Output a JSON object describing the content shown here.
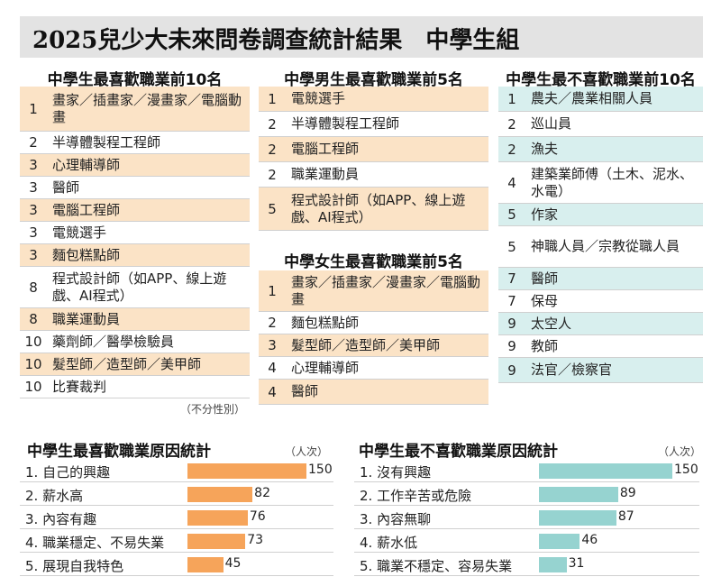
{
  "title": "2025兒少大未來問卷調查統計結果　中學生組",
  "colors": {
    "orange": "#f6a45a",
    "teal": "#96d3d0",
    "orange_light": "#fbe3c6",
    "teal_light": "#d8efee"
  },
  "like_top10": {
    "heading": "中學生最喜歡職業前10名",
    "note": "（不分性別）",
    "rows": [
      {
        "rank": "1",
        "label": "畫家／插畫家／漫畫家／電腦動畫",
        "hl": true
      },
      {
        "rank": "2",
        "label": "半導體製程工程師",
        "hl": false
      },
      {
        "rank": "3",
        "label": "心理輔導師",
        "hl": true
      },
      {
        "rank": "3",
        "label": "醫師",
        "hl": false
      },
      {
        "rank": "3",
        "label": "電腦工程師",
        "hl": true
      },
      {
        "rank": "3",
        "label": "電競選手",
        "hl": false
      },
      {
        "rank": "3",
        "label": "麵包糕點師",
        "hl": true
      },
      {
        "rank": "8",
        "label": "程式設計師（如APP、線上遊戲、AI程式）",
        "hl": false
      },
      {
        "rank": "8",
        "label": "職業運動員",
        "hl": true
      },
      {
        "rank": "10",
        "label": "藥劑師／醫學檢驗員",
        "hl": false
      },
      {
        "rank": "10",
        "label": "髮型師／造型師／美甲師",
        "hl": true
      },
      {
        "rank": "10",
        "label": "比賽裁判",
        "hl": false
      }
    ]
  },
  "boys_top5": {
    "heading": "中學男生最喜歡職業前5名",
    "rows": [
      {
        "rank": "1",
        "label": "電競選手",
        "hl": true
      },
      {
        "rank": "2",
        "label": "半導體製程工程師",
        "hl": false
      },
      {
        "rank": "2",
        "label": "電腦工程師",
        "hl": true
      },
      {
        "rank": "2",
        "label": "職業運動員",
        "hl": false
      },
      {
        "rank": "5",
        "label": "程式設計師（如APP、線上遊戲、AI程式）",
        "hl": true
      }
    ]
  },
  "girls_top5": {
    "heading": "中學女生最喜歡職業前5名",
    "rows": [
      {
        "rank": "1",
        "label": "畫家／插畫家／漫畫家／電腦動畫",
        "hl": true
      },
      {
        "rank": "2",
        "label": "麵包糕點師",
        "hl": false
      },
      {
        "rank": "3",
        "label": "髮型師／造型師／美甲師",
        "hl": true
      },
      {
        "rank": "4",
        "label": "心理輔導師",
        "hl": false
      },
      {
        "rank": "4",
        "label": "醫師",
        "hl": true
      }
    ]
  },
  "dislike_top10": {
    "heading": "中學生最不喜歡職業前10名",
    "rows": [
      {
        "rank": "1",
        "label": "農夫／農業相關人員",
        "hl": true
      },
      {
        "rank": "2",
        "label": "巡山員",
        "hl": false
      },
      {
        "rank": "2",
        "label": "漁夫",
        "hl": true
      },
      {
        "rank": "4",
        "label": "建築業師傅（土木、泥水、水電）",
        "hl": false
      },
      {
        "rank": "5",
        "label": "作家",
        "hl": true
      },
      {
        "rank": "5",
        "label": "神職人員／宗教從職人員",
        "hl": false
      },
      {
        "rank": "7",
        "label": "醫師",
        "hl": true
      },
      {
        "rank": "7",
        "label": "保母",
        "hl": false
      },
      {
        "rank": "9",
        "label": "太空人",
        "hl": true
      },
      {
        "rank": "9",
        "label": "教師",
        "hl": false
      },
      {
        "rank": "9",
        "label": "法官／檢察官",
        "hl": true
      }
    ]
  },
  "chart_data": [
    {
      "type": "bar",
      "title": "中學生最喜歡職業原因統計",
      "unit": "（人次）",
      "categories": [
        "1. 自己的興趣",
        "2. 薪水高",
        "3. 內容有趣",
        "4. 職業穩定、不易失業",
        "5. 展現自我特色"
      ],
      "values": [
        150,
        82,
        76,
        73,
        45
      ],
      "color": "#f6a45a",
      "xlim": [
        0,
        150
      ]
    },
    {
      "type": "bar",
      "title": "中學生最不喜歡職業原因統計",
      "unit": "（人次）",
      "categories": [
        "1. 沒有興趣",
        "2. 工作辛苦或危險",
        "3. 內容無聊",
        "4. 薪水低",
        "5. 職業不穩定、容易失業"
      ],
      "values": [
        150,
        89,
        87,
        46,
        31
      ],
      "color": "#96d3d0",
      "xlim": [
        0,
        150
      ]
    }
  ]
}
